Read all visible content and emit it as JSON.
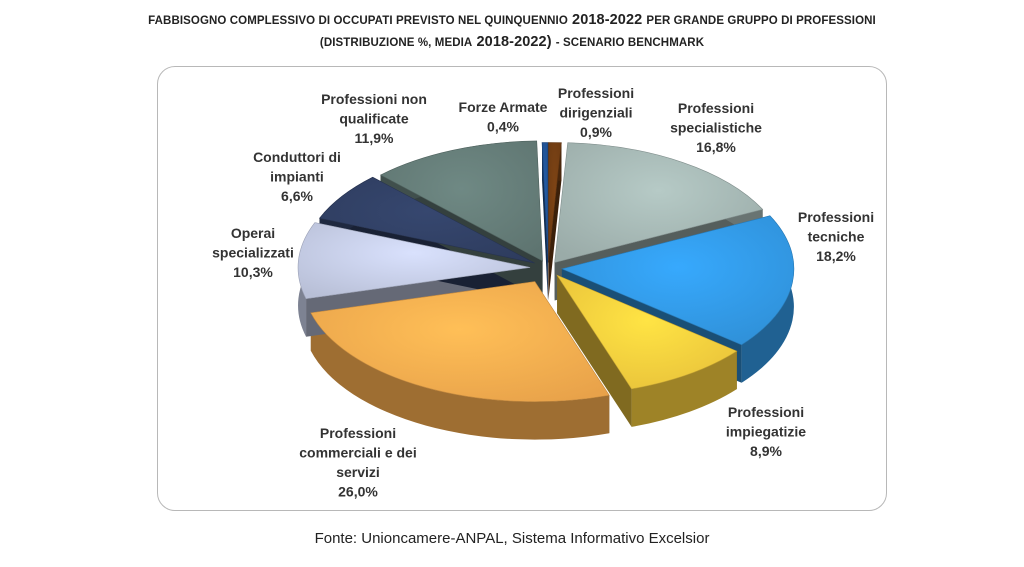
{
  "header": {
    "title_line1_small_a": "Fabbisogno complessivo di occupati previsto nel quinquennio",
    "title_line1_year": "2018-2022",
    "title_line1_small_b": "per grande gruppo di professioni",
    "title_line2_small_a": "(distribuzione %, media",
    "title_line2_year": "2018-2022)",
    "title_line2_small_b": "- Scenario benchmark"
  },
  "source": "Fonte: Unioncamere-ANPAL, Sistema Informativo Excelsior",
  "chart_data": {
    "type": "pie",
    "start_angle_deg": 0,
    "direction": "clockwise",
    "slices": [
      {
        "label_lines": [
          "Professioni",
          "dirigenziali"
        ],
        "value": 0.9,
        "value_label": "0,9%",
        "color": "#6b3a12"
      },
      {
        "label_lines": [
          "Professioni",
          "specialistiche"
        ],
        "value": 16.8,
        "value_label": "16,8%",
        "color": "#9aaba8"
      },
      {
        "label_lines": [
          "Professioni",
          "tecniche"
        ],
        "value": 18.2,
        "value_label": "18,2%",
        "color": "#2f8fd6"
      },
      {
        "label_lines": [
          "Professioni",
          "impiegatizie"
        ],
        "value": 8.9,
        "value_label": "8,9%",
        "color": "#e8c13a"
      },
      {
        "label_lines": [
          "Professioni",
          "commerciali e dei",
          "servizi"
        ],
        "value": 26.0,
        "value_label": "26,0%",
        "color": "#e8a24a"
      },
      {
        "label_lines": [
          "Operai",
          "specializzati"
        ],
        "value": 10.3,
        "value_label": "10,3%",
        "color": "#b8bfd6"
      },
      {
        "label_lines": [
          "Conduttori di",
          "impianti"
        ],
        "value": 6.6,
        "value_label": "6,6%",
        "color": "#2e3c5e"
      },
      {
        "label_lines": [
          "Professioni non",
          "qualificate"
        ],
        "value": 11.9,
        "value_label": "11,9%",
        "color": "#5e7470"
      },
      {
        "label_lines": [
          "Forze Armate"
        ],
        "value": 0.4,
        "value_label": "0,4%",
        "color": "#1f4e8c"
      }
    ]
  }
}
